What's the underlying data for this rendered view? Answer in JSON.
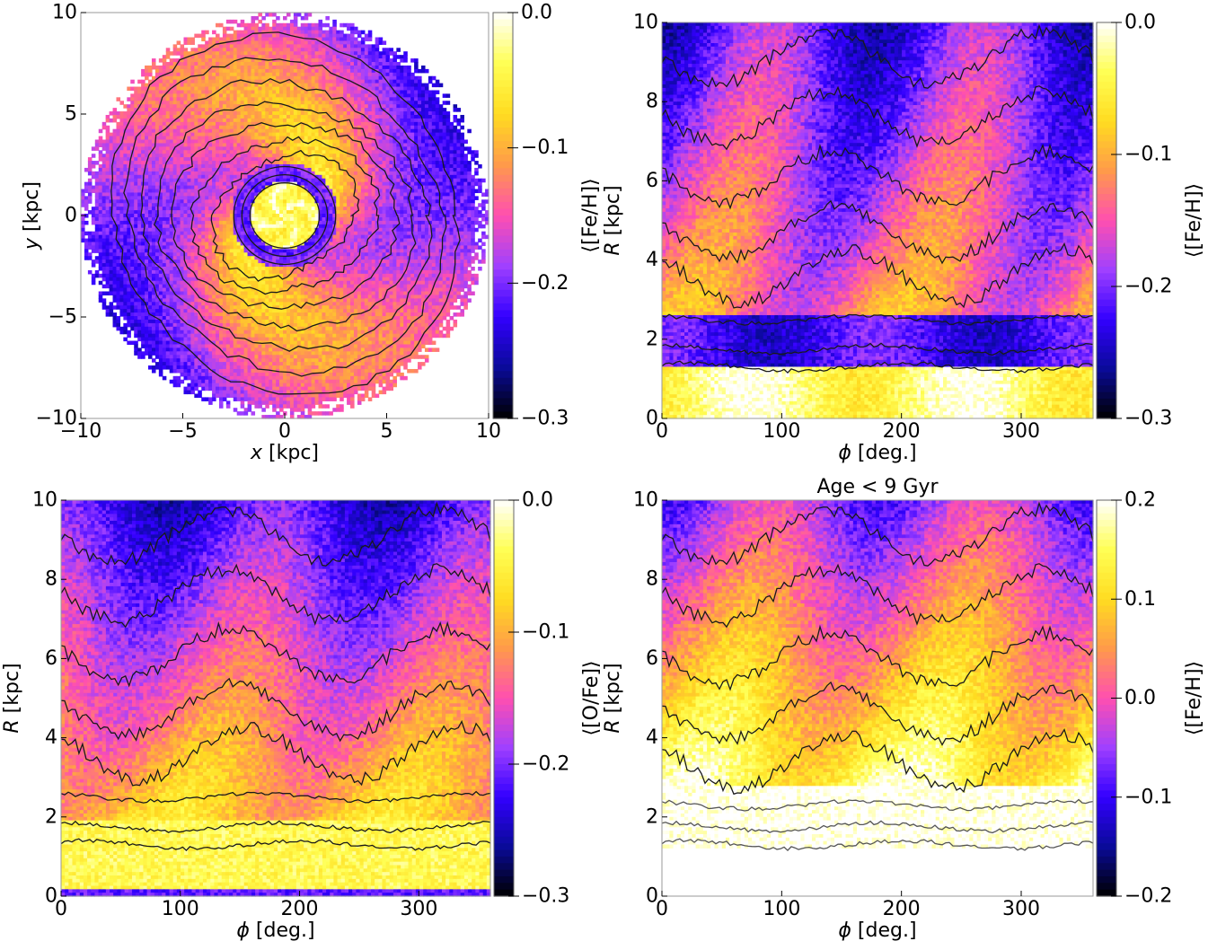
{
  "colormap": "gnuplot2",
  "colors": {
    "cmap_stops": [
      "#000000",
      "#0a0a99",
      "#3300ff",
      "#a040ff",
      "#ff4fb0",
      "#ff9a4a",
      "#ffdc20",
      "#ffff55",
      "#ffffff"
    ],
    "contour": "#1a1a1a"
  },
  "chart_data": [
    {
      "type": "heatmap",
      "id": "xy-feh",
      "title": "",
      "xlabel_var": "x",
      "xlabel_unit": " [kpc]",
      "ylabel_var": "y",
      "ylabel_unit": " [kpc]",
      "xlim": [
        -10,
        10
      ],
      "ylim": [
        -10,
        10
      ],
      "xticks": [
        -10,
        -5,
        0,
        5,
        10
      ],
      "yticks": [
        -10,
        -5,
        0,
        5,
        10
      ],
      "xtick_labels": [
        "−10",
        "−5",
        "0",
        "5",
        "10"
      ],
      "ytick_labels": [
        "−10",
        "−5",
        "0",
        "5",
        "10"
      ],
      "colorbar": {
        "label": "⟨[Fe/H]⟩",
        "range": [
          -0.3,
          0.0
        ],
        "ticks": [
          -0.3,
          -0.2,
          -0.1,
          0.0
        ],
        "tick_labels": [
          "−0.3",
          "−0.2",
          "−0.1",
          "0.0"
        ]
      },
      "description_values": {
        "outer_limit_kpc": 10,
        "bar_region_feh": 0.0,
        "ring_feh": -0.2,
        "spiral_arm_feh": -0.06,
        "interarm_feh": -0.12
      }
    },
    {
      "type": "heatmap",
      "id": "phiR-feh",
      "title": "",
      "xlabel_var": "ϕ",
      "xlabel_unit": " [deg.]",
      "ylabel_var": "R",
      "ylabel_unit": " [kpc]",
      "xlim": [
        0,
        360
      ],
      "ylim": [
        0,
        10
      ],
      "xticks": [
        0,
        100,
        200,
        300
      ],
      "yticks": [
        0,
        2,
        4,
        6,
        8,
        10
      ],
      "xtick_labels": [
        "0",
        "100",
        "200",
        "300"
      ],
      "ytick_labels": [
        "0",
        "2",
        "4",
        "6",
        "8",
        "10"
      ],
      "colorbar": {
        "label": "⟨[Fe/H]⟩",
        "range": [
          -0.3,
          0.0
        ],
        "ticks": [
          -0.3,
          -0.2,
          -0.1,
          0.0
        ],
        "tick_labels": [
          "−0.3",
          "−0.2",
          "−0.1",
          "0.0"
        ]
      }
    },
    {
      "type": "heatmap",
      "id": "phiR-ofe",
      "title": "",
      "xlabel_var": "ϕ",
      "xlabel_unit": " [deg.]",
      "ylabel_var": "R",
      "ylabel_unit": " [kpc]",
      "xlim": [
        0,
        360
      ],
      "ylim": [
        0,
        10
      ],
      "xticks": [
        0,
        100,
        200,
        300
      ],
      "yticks": [
        0,
        2,
        4,
        6,
        8,
        10
      ],
      "xtick_labels": [
        "0",
        "100",
        "200",
        "300"
      ],
      "ytick_labels": [
        "0",
        "2",
        "4",
        "6",
        "8",
        "10"
      ],
      "colorbar": {
        "label": "⟨[O/Fe]⟩",
        "range": [
          -0.3,
          0.0
        ],
        "ticks": [
          -0.3,
          -0.2,
          -0.1,
          0.0
        ],
        "tick_labels": [
          "−0.3",
          "−0.2",
          "−0.1",
          "0.0"
        ]
      }
    },
    {
      "type": "heatmap",
      "id": "phiR-feh-young",
      "title": "Age < 9 Gyr",
      "xlabel_var": "ϕ",
      "xlabel_unit": " [deg.]",
      "ylabel_var": "R",
      "ylabel_unit": " [kpc]",
      "xlim": [
        0,
        360
      ],
      "ylim": [
        0,
        10
      ],
      "xticks": [
        0,
        100,
        200,
        300
      ],
      "yticks": [
        0,
        2,
        4,
        6,
        8,
        10
      ],
      "xtick_labels": [
        "0",
        "100",
        "200",
        "300"
      ],
      "ytick_labels": [
        "0",
        "2",
        "4",
        "6",
        "8",
        "10"
      ],
      "colorbar": {
        "label": "⟨[Fe/H]⟩",
        "range": [
          -0.2,
          0.2
        ],
        "ticks": [
          -0.2,
          -0.1,
          0.0,
          0.1,
          0.2
        ],
        "tick_labels": [
          "−0.2",
          "−0.1",
          "0.0",
          "0.1",
          "0.2"
        ]
      }
    }
  ]
}
